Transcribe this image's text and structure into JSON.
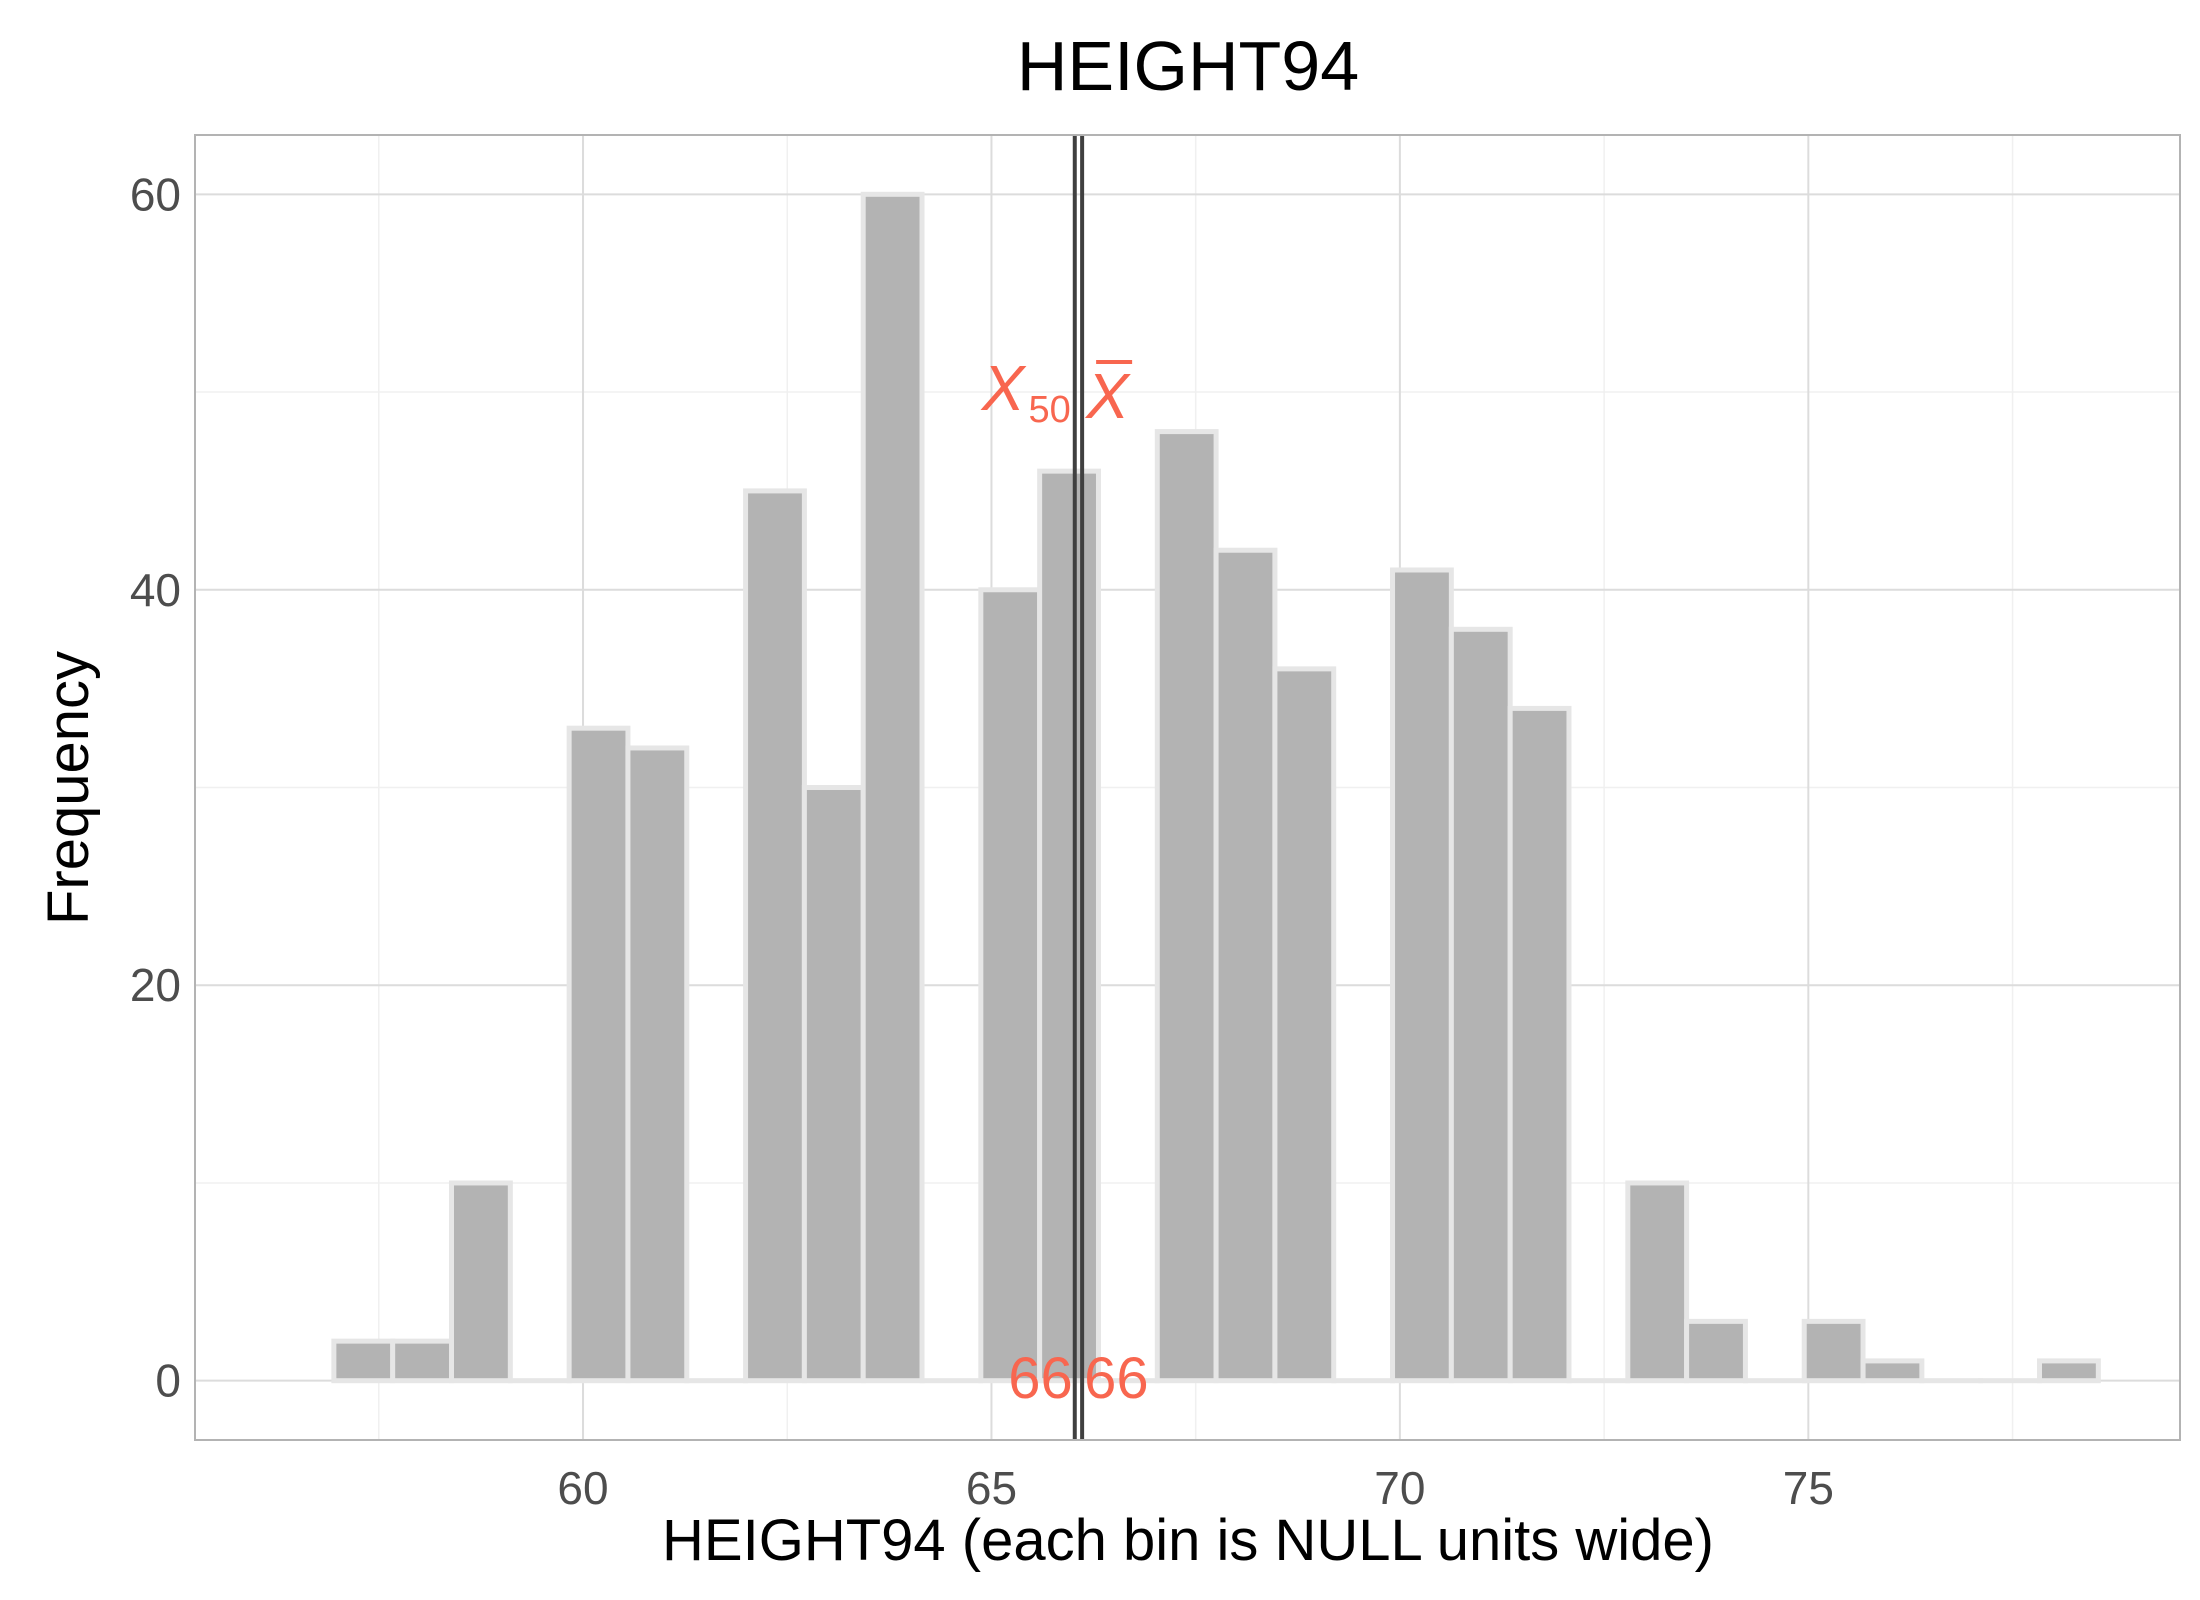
{
  "chart_data": {
    "type": "bar",
    "title": "HEIGHT94",
    "xlabel": "HEIGHT94 (each bin is NULL units wide)",
    "ylabel": "Frequency",
    "xlim": [
      55.25,
      79.55
    ],
    "ylim": [
      -3,
      63
    ],
    "x_ticks": [
      60,
      65,
      70,
      75
    ],
    "y_ticks": [
      0,
      20,
      40,
      60
    ],
    "grid": true,
    "bin_width": 0.72,
    "bars": [
      {
        "x": 57.31,
        "count": 2
      },
      {
        "x": 58.03,
        "count": 2
      },
      {
        "x": 58.75,
        "count": 10
      },
      {
        "x": 59.47,
        "count": 0
      },
      {
        "x": 60.19,
        "count": 33
      },
      {
        "x": 60.91,
        "count": 32
      },
      {
        "x": 61.63,
        "count": 0
      },
      {
        "x": 62.35,
        "count": 45
      },
      {
        "x": 63.07,
        "count": 30
      },
      {
        "x": 63.79,
        "count": 60
      },
      {
        "x": 64.51,
        "count": 0
      },
      {
        "x": 65.23,
        "count": 40
      },
      {
        "x": 65.95,
        "count": 46
      },
      {
        "x": 66.67,
        "count": 0
      },
      {
        "x": 67.39,
        "count": 48
      },
      {
        "x": 68.11,
        "count": 42
      },
      {
        "x": 68.83,
        "count": 36
      },
      {
        "x": 69.55,
        "count": 0
      },
      {
        "x": 70.27,
        "count": 41
      },
      {
        "x": 70.99,
        "count": 38
      },
      {
        "x": 71.71,
        "count": 34
      },
      {
        "x": 72.43,
        "count": 0
      },
      {
        "x": 73.15,
        "count": 10
      },
      {
        "x": 73.87,
        "count": 3
      },
      {
        "x": 74.59,
        "count": 0
      },
      {
        "x": 75.31,
        "count": 3
      },
      {
        "x": 76.03,
        "count": 1
      },
      {
        "x": 76.75,
        "count": 0
      },
      {
        "x": 77.47,
        "count": 0
      },
      {
        "x": 78.19,
        "count": 1
      }
    ],
    "reference_lines": [
      {
        "name": "median",
        "x": 66.02,
        "symbol": "X",
        "subscript": "50",
        "value_label": "66"
      },
      {
        "name": "mean",
        "x": 66.11,
        "symbol": "X",
        "subscript": "",
        "value_label": "66"
      }
    ],
    "colors": {
      "bar_fill": "#b3b3b3",
      "bar_stroke": "#e6e6e6",
      "ref_line": "#404040",
      "annotation": "#f8664f",
      "panel_border": "#b3b3b3",
      "grid_major": "#dcdcdc",
      "grid_minor": "#f0f0f0"
    }
  }
}
